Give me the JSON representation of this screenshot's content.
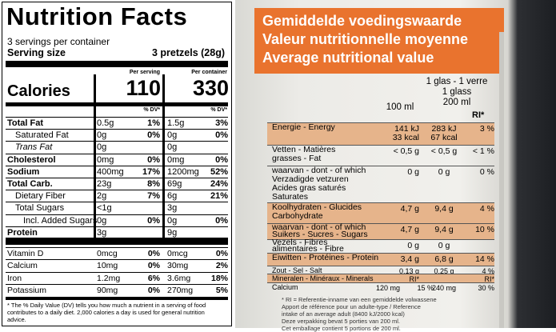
{
  "label": {
    "title": "Nutrition Facts",
    "servings": "3 servings per container",
    "serving_size_label": "Serving size",
    "serving_size_value": "3 pretzels (28g)",
    "calories_label": "Calories",
    "per_serving_header": "Per serving",
    "per_container_header": "Per container",
    "calories_per_serving": "110",
    "calories_per_container": "330",
    "dv_header_serving": "% DV*",
    "dv_header_container": "% DV*",
    "rows": [
      {
        "name": "Total Fat",
        "bold": true,
        "serving": "0.5g",
        "serving_dv": "1%",
        "container": "1.5g",
        "container_dv": "3%"
      },
      {
        "name": "Saturated Fat",
        "indent": 1,
        "serving": "0g",
        "serving_dv": "0%",
        "container": "0g",
        "container_dv": "0%"
      },
      {
        "name": "Trans Fat",
        "indent": 1,
        "italic": true,
        "serving": "0g",
        "container": "0g"
      },
      {
        "name": "Cholesterol",
        "bold": true,
        "serving": "0mg",
        "serving_dv": "0%",
        "container": "0mg",
        "container_dv": "0%"
      },
      {
        "name": "Sodium",
        "bold": true,
        "serving": "400mg",
        "serving_dv": "17%",
        "container": "1200mg",
        "container_dv": "52%"
      },
      {
        "name": "Total Carb.",
        "bold": true,
        "serving": "23g",
        "serving_dv": "8%",
        "container": "69g",
        "container_dv": "24%"
      },
      {
        "name": "Dietary Fiber",
        "indent": 1,
        "serving": "2g",
        "serving_dv": "7%",
        "container": "6g",
        "container_dv": "21%"
      },
      {
        "name": "Total Sugars",
        "indent": 1,
        "serving": "<1g",
        "container": "3g"
      },
      {
        "name": "Incl. Added Sugars",
        "indent": 2,
        "serving": "0g",
        "serving_dv": "0%",
        "container": "0g",
        "container_dv": "0%"
      },
      {
        "name": "Protein",
        "bold": true,
        "serving": "3g",
        "container": "9g"
      }
    ],
    "micros": [
      {
        "name": "Vitamin D",
        "serving": "0mcg",
        "serving_dv": "0%",
        "container": "0mcg",
        "container_dv": "0%"
      },
      {
        "name": "Calcium",
        "serving": "10mg",
        "serving_dv": "0%",
        "container": "30mg",
        "container_dv": "2%"
      },
      {
        "name": "Iron",
        "serving": "1.2mg",
        "serving_dv": "6%",
        "container": "3.6mg",
        "container_dv": "18%"
      },
      {
        "name": "Potassium",
        "serving": "90mg",
        "serving_dv": "0%",
        "container": "270mg",
        "container_dv": "5%"
      }
    ],
    "footnote": "* The % Daily Value (DV) tells you how much a nutrient in a serving of food contributes to a daily diet. 2,000 calories a day is used for general nutrition advice."
  },
  "carton": {
    "header": [
      "Gemiddelde voedingswaarde",
      "Valeur nutritionnelle moyenne",
      "Average nutritional value"
    ],
    "col_per100": "100 ml",
    "col_glass": [
      "1 glas - 1 verre",
      "1 glass",
      "200 ml"
    ],
    "col_ri": "RI*",
    "rows": [
      {
        "label": [
          "Energie - Energy"
        ],
        "shaded": true,
        "per100": [
          "141 kJ",
          "33 kcal"
        ],
        "glass": [
          "283 kJ",
          "67 kcal"
        ],
        "ri": [
          "3 %"
        ]
      },
      {
        "label": [
          "Vetten - Matières",
          "grasses - Fat"
        ],
        "per100": [
          "< 0,5 g"
        ],
        "glass": [
          "< 0,5 g"
        ],
        "ri": [
          "< 1 %"
        ]
      },
      {
        "label": [
          "waarvan - dont - of which",
          "Verzadigde vetzuren",
          "Acides gras saturés",
          "Saturates"
        ],
        "per100": [
          "0 g"
        ],
        "glass": [
          "0 g"
        ],
        "ri": [
          "0 %"
        ]
      },
      {
        "label": [
          "Koolhydraten - Glucides",
          "Carbohydrate"
        ],
        "shaded": true,
        "per100": [
          "4,7 g"
        ],
        "glass": [
          "9,4 g"
        ],
        "ri": [
          "4 %"
        ]
      },
      {
        "label": [
          "waarvan - dont - of which",
          "Suikers - Sucres - Sugars"
        ],
        "shaded": true,
        "per100": [
          "4,7 g"
        ],
        "glass": [
          "9,4 g"
        ],
        "ri": [
          "10 %"
        ]
      },
      {
        "label": [
          "Vezels - Fibres",
          "alimentaires - Fibre"
        ],
        "per100": [
          "0 g"
        ],
        "glass": [
          "0 g"
        ]
      },
      {
        "label": [
          "Eiwitten - Protéines - Protein"
        ],
        "shaded": true,
        "per100": [
          "3,4 g"
        ],
        "glass": [
          "6,8 g"
        ],
        "ri": [
          "14 %"
        ]
      },
      {
        "label": [
          "Zout - Sel - Salt"
        ],
        "per100": [
          "0,13 g"
        ],
        "glass": [
          "0,25 g"
        ],
        "ri": [
          "4 %"
        ]
      },
      {
        "label": [
          "Mineralen - Minéraux - Minerals"
        ],
        "shaded": true,
        "per100": [
          "RI*"
        ],
        "ri": [
          "RI*"
        ]
      },
      {
        "label": [
          "Calcium"
        ],
        "per100": [
          "120 mg"
        ],
        "per100_ri": [
          "15 %"
        ],
        "glass": [
          "240 mg"
        ],
        "ri": [
          "30 %"
        ]
      }
    ],
    "footnote": [
      "* RI = Referentie-inname van een gemiddelde volwassene",
      "Apport de référence pour un adulte-type / Reference",
      "intake of an average adult (8400 kJ/2000 kcal)",
      "Deze verpakking bevat 5 porties van 200 ml.",
      "Cet emballage contient 5 portions de 200 ml."
    ]
  }
}
